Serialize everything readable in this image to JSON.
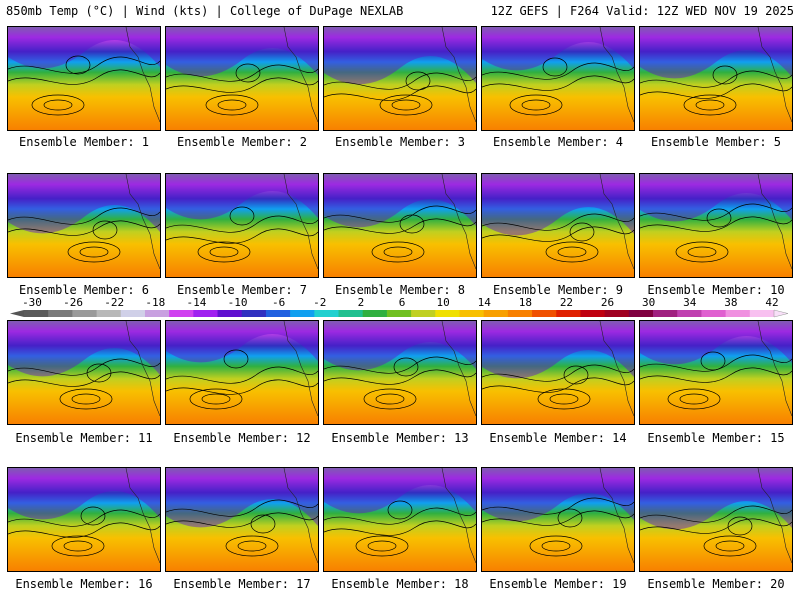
{
  "header": {
    "left": "850mb Temp (°C) | Wind (kts) | College of DuPage NEXLAB",
    "right": "12Z GEFS | F264 Valid: 12Z WED NOV 19 2025"
  },
  "members": [
    {
      "label": "Ensemble Member: 1"
    },
    {
      "label": "Ensemble Member: 2"
    },
    {
      "label": "Ensemble Member: 3"
    },
    {
      "label": "Ensemble Member: 4"
    },
    {
      "label": "Ensemble Member: 5"
    },
    {
      "label": "Ensemble Member: 6"
    },
    {
      "label": "Ensemble Member: 7"
    },
    {
      "label": "Ensemble Member: 8"
    },
    {
      "label": "Ensemble Member: 9"
    },
    {
      "label": "Ensemble Member: 10"
    },
    {
      "label": "Ensemble Member: 11"
    },
    {
      "label": "Ensemble Member: 12"
    },
    {
      "label": "Ensemble Member: 13"
    },
    {
      "label": "Ensemble Member: 14"
    },
    {
      "label": "Ensemble Member: 15"
    },
    {
      "label": "Ensemble Member: 16"
    },
    {
      "label": "Ensemble Member: 17"
    },
    {
      "label": "Ensemble Member: 18"
    },
    {
      "label": "Ensemble Member: 19"
    },
    {
      "label": "Ensemble Member: 20"
    }
  ],
  "colorbar": {
    "labels": [
      "-30",
      "-26",
      "-22",
      "-18",
      "-14",
      "-10",
      "-6",
      "-2",
      "2",
      "6",
      "10",
      "14",
      "18",
      "22",
      "26",
      "30",
      "34",
      "38",
      "42"
    ],
    "colors": [
      "#5a5a5a",
      "#7a7a7a",
      "#9a9a9a",
      "#b8b8b8",
      "#d0d0e8",
      "#c8a0e0",
      "#d040f0",
      "#a020f0",
      "#6010d0",
      "#3030c0",
      "#2060e0",
      "#10a0f0",
      "#20d0d0",
      "#20c090",
      "#30b040",
      "#70c020",
      "#c0d020",
      "#f0e000",
      "#f8c000",
      "#f8a000",
      "#f88000",
      "#f05000",
      "#e02000",
      "#c00010",
      "#a00020",
      "#800040",
      "#a02080",
      "#c040b0",
      "#e060d0",
      "#f090e0",
      "#f8c0f0"
    ]
  }
}
